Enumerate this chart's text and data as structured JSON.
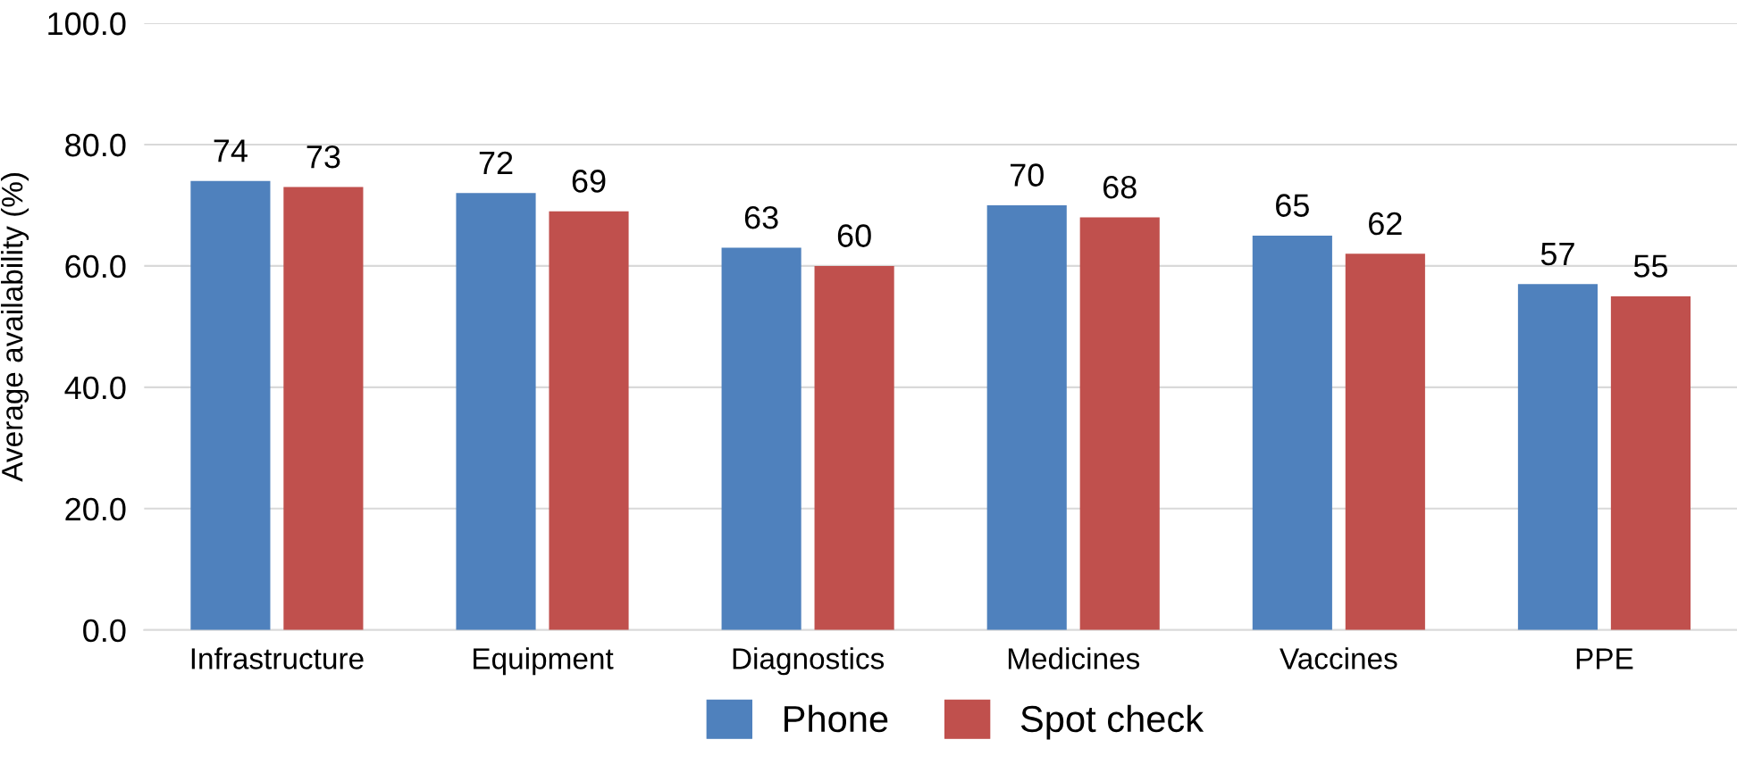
{
  "chart_data": {
    "type": "bar",
    "ylabel": "Average availability (%)",
    "categories": [
      "Infrastructure",
      "Equipment",
      "Diagnostics",
      "Medicines",
      "Vaccines",
      "PPE"
    ],
    "series": [
      {
        "name": "Phone",
        "color": "#4f81bd",
        "values": [
          74,
          72,
          63,
          70,
          65,
          57
        ]
      },
      {
        "name": "Spot check",
        "color": "#c0504d",
        "values": [
          73,
          69,
          60,
          68,
          62,
          55
        ]
      }
    ],
    "ylim": [
      0,
      100
    ],
    "yticks": [
      {
        "value": 0,
        "label": "0.0"
      },
      {
        "value": 20,
        "label": "20.0"
      },
      {
        "value": 40,
        "label": "40.0"
      },
      {
        "value": 60,
        "label": "60.0"
      },
      {
        "value": 80,
        "label": "80.0"
      },
      {
        "value": 100,
        "label": "100.0"
      }
    ],
    "grid": "y",
    "legend": "bottom",
    "data_labels": true
  }
}
